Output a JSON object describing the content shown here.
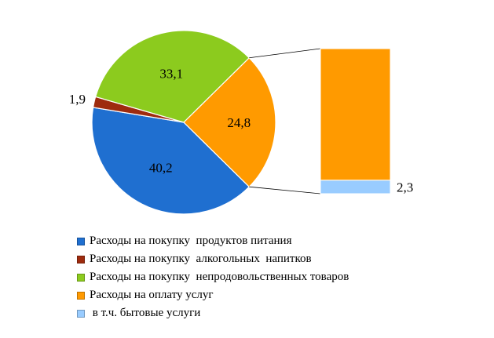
{
  "chart_data": {
    "type": "pie",
    "slices": [
      {
        "label": "Расходы на покупку  продуктов питания",
        "display": "40,2",
        "value": 40.2,
        "color": "#1F6FD0"
      },
      {
        "label": "Расходы на покупку  алкогольных  напитков",
        "display": "1,9",
        "value": 1.9,
        "color": "#9E2B0E"
      },
      {
        "label": "Расходы на покупку  непродовольственных товаров",
        "display": "33,1",
        "value": 33.1,
        "color": "#8CCB1E"
      },
      {
        "label": "Расходы на оплату услуг",
        "display": "24,8",
        "value": 24.8,
        "color": "#FF9A00"
      }
    ],
    "breakout": {
      "of": "Расходы на оплату услуг",
      "sub": [
        {
          "label": " в т.ч. бытовые услуги",
          "display": "2,3",
          "value": 2.3,
          "color": "#99CCFF"
        }
      ]
    },
    "legend": [
      {
        "label": "Расходы на покупку  продуктов питания",
        "color": "#1F6FD0"
      },
      {
        "label": "Расходы на покупку  алкогольных  напитков",
        "color": "#9E2B0E"
      },
      {
        "label": "Расходы на покупку  непродовольственных товаров",
        "color": "#8CCB1E"
      },
      {
        "label": "Расходы на оплату услуг",
        "color": "#FF9A00"
      },
      {
        "label": " в т.ч. бытовые услуги",
        "color": "#99CCFF"
      }
    ],
    "legend_position": "bottom"
  }
}
